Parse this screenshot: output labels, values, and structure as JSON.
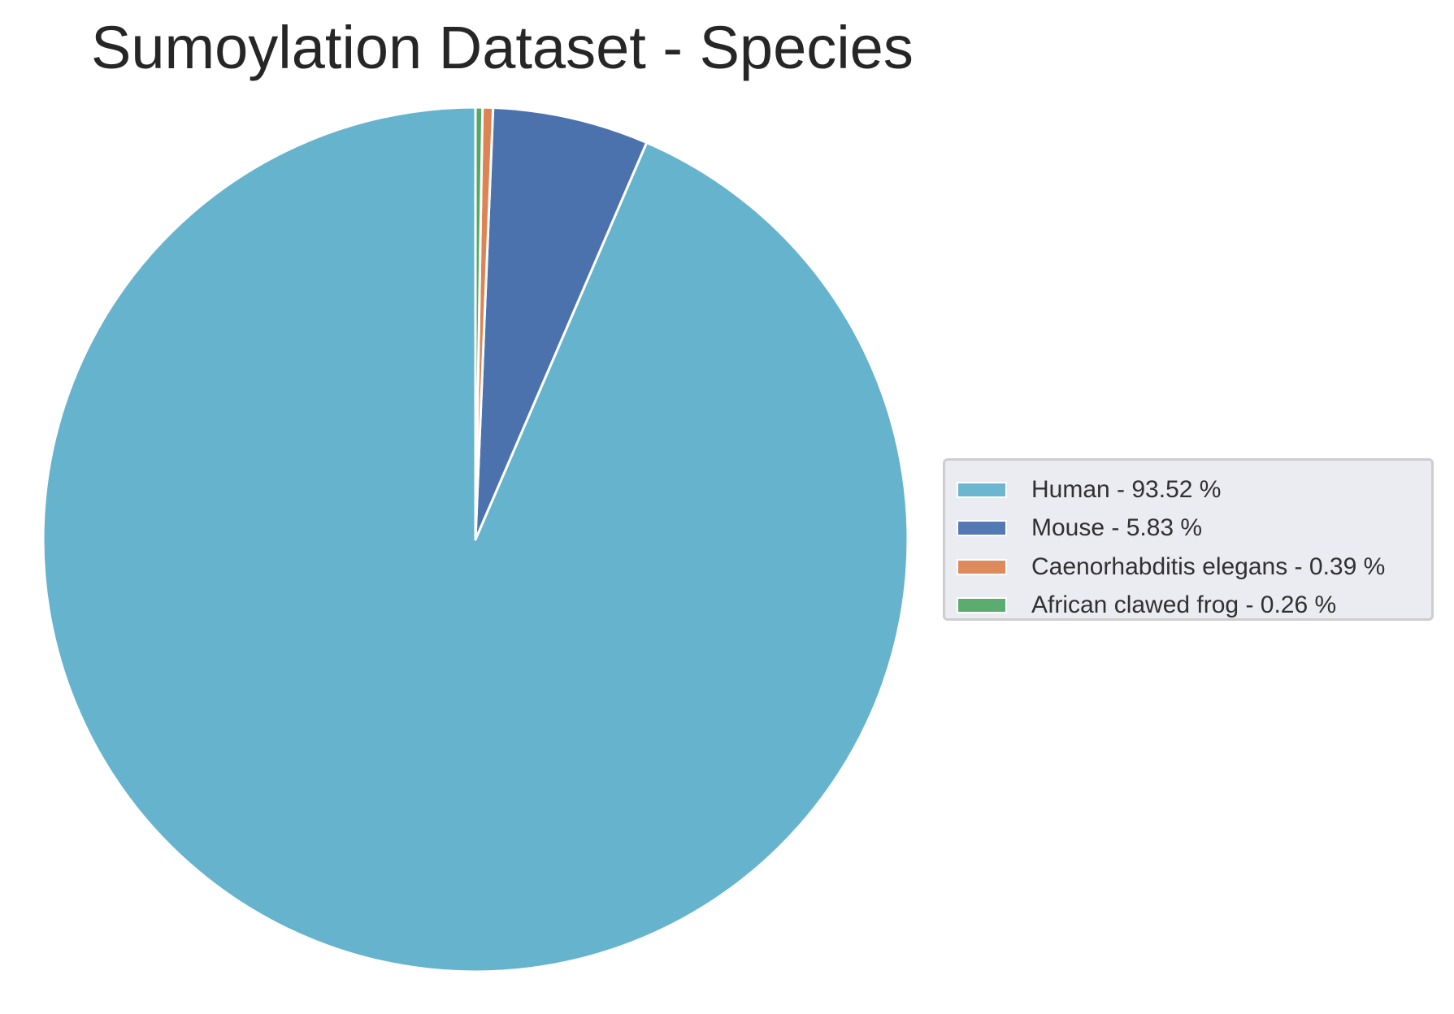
{
  "chart_data": {
    "type": "pie",
    "title": "Sumoylation Dataset - Species",
    "labels": [
      "Human",
      "Mouse",
      "Caenorhabditis elegans",
      "African clawed frog"
    ],
    "values": [
      93.52,
      5.83,
      0.39,
      0.26
    ],
    "colors": [
      "#66b3cd",
      "#4c72ae",
      "#dd8453",
      "#55a868"
    ],
    "legend_labels": [
      "Human - 93.52 %",
      "Mouse - 5.83 %",
      "Caenorhabditis elegans - 0.39 %",
      "African clawed frog - 0.26 %"
    ],
    "start_angle_deg": 90,
    "direction": "counterclockwise",
    "legend_position": "center-right"
  }
}
